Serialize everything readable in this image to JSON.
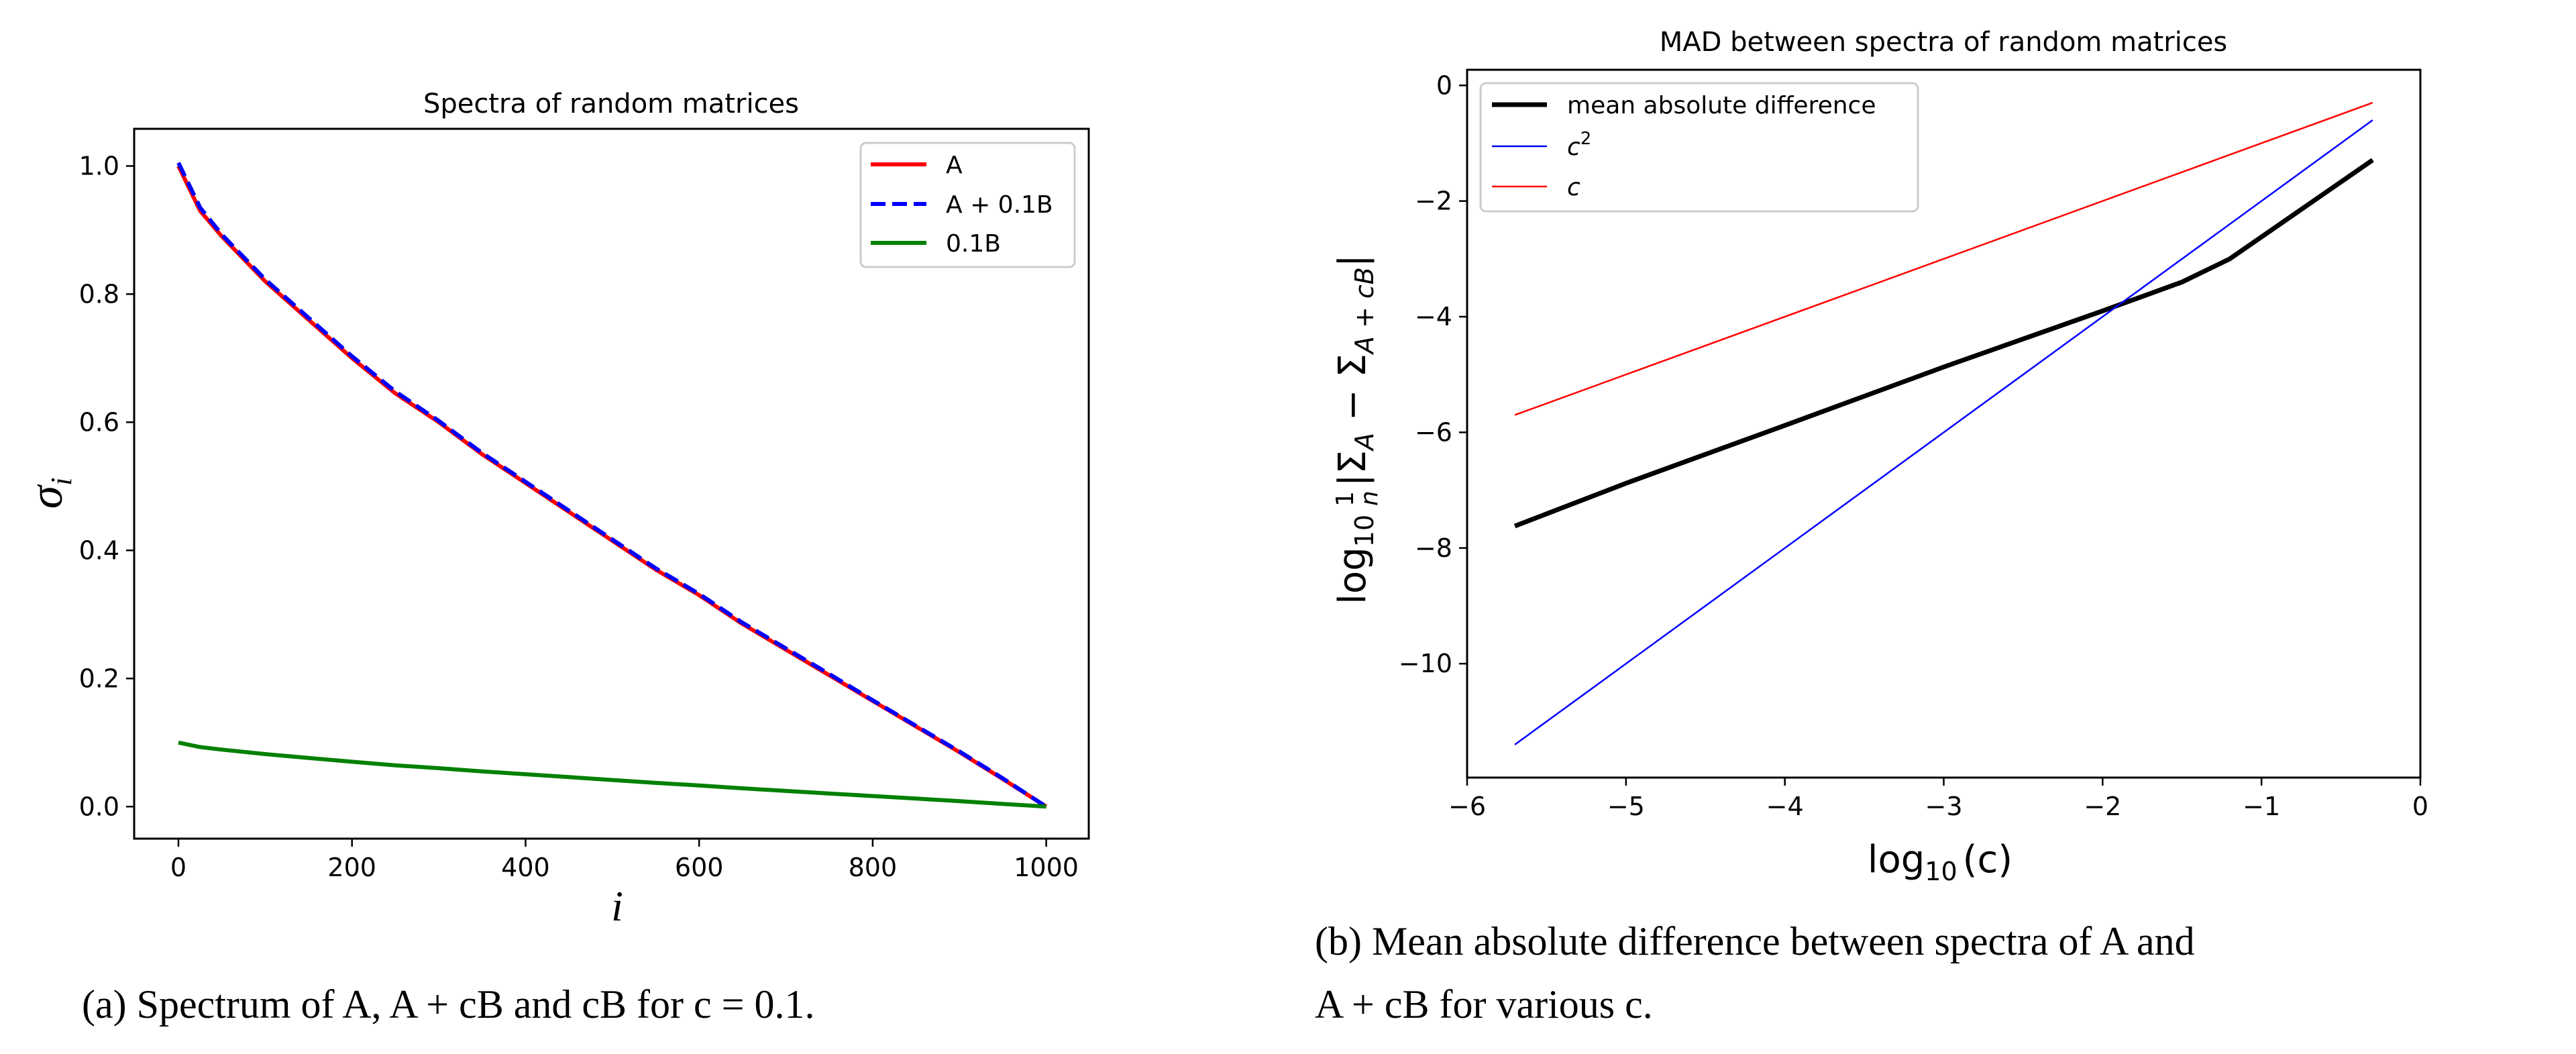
{
  "chart_data": [
    {
      "type": "line",
      "title": "Spectra of random matrices",
      "xlabel": "i",
      "ylabel": "σ",
      "ylabel_sub": "i",
      "xlim": [
        -51,
        1049
      ],
      "ylim": [
        -0.05,
        1.058
      ],
      "xticks": [
        0,
        200,
        400,
        600,
        800,
        1000
      ],
      "xtick_labels": [
        "0",
        "200",
        "400",
        "600",
        "800",
        "1000"
      ],
      "yticks": [
        0.0,
        0.2,
        0.4,
        0.6,
        0.8,
        1.0
      ],
      "ytick_labels": [
        "0.0",
        "0.2",
        "0.4",
        "0.6",
        "0.8",
        "1.0"
      ],
      "grid": false,
      "legend": "top-right",
      "x": [
        0,
        25,
        50,
        100,
        150,
        200,
        250,
        300,
        350,
        400,
        450,
        500,
        550,
        600,
        650,
        700,
        750,
        800,
        850,
        900,
        950,
        1000
      ],
      "series": [
        {
          "name": "A",
          "color": "#ff0000",
          "style": "solid",
          "values": [
            1.0,
            0.93,
            0.89,
            0.82,
            0.76,
            0.7,
            0.645,
            0.6,
            0.55,
            0.505,
            0.46,
            0.415,
            0.37,
            0.33,
            0.285,
            0.245,
            0.205,
            0.165,
            0.125,
            0.085,
            0.043,
            0.0
          ]
        },
        {
          "name": "A + 0.1B",
          "color": "#0000ff",
          "style": "dashed",
          "values": [
            1.005,
            0.935,
            0.893,
            0.823,
            0.763,
            0.703,
            0.648,
            0.602,
            0.552,
            0.507,
            0.462,
            0.417,
            0.372,
            0.332,
            0.287,
            0.247,
            0.207,
            0.166,
            0.126,
            0.086,
            0.044,
            0.0
          ]
        },
        {
          "name": "0.1B",
          "color": "#008000",
          "style": "solid",
          "values": [
            0.1,
            0.093,
            0.089,
            0.082,
            0.076,
            0.07,
            0.0645,
            0.06,
            0.055,
            0.0505,
            0.046,
            0.0415,
            0.037,
            0.033,
            0.0285,
            0.0245,
            0.0205,
            0.0165,
            0.0125,
            0.0085,
            0.0043,
            0.0
          ]
        }
      ]
    },
    {
      "type": "line",
      "title": "MAD between spectra of random matrices",
      "xlabel": "log",
      "xlabel_sub": "10",
      "xlabel_end": "(c)",
      "ylabel_parts": {
        "log": "log",
        "sub10": "10",
        "frac_num": "1",
        "frac_den": "n",
        "bar_sigma": "|Σ",
        "subA": "A",
        "minus_sigma": " − Σ",
        "subAcB": "A + cB",
        "bar": "|"
      },
      "xlim": [
        -6,
        0
      ],
      "ylim": [
        -11.97,
        0.27
      ],
      "xticks": [
        -6,
        -5,
        -4,
        -3,
        -2,
        -1,
        0
      ],
      "xtick_labels": [
        "−6",
        "−5",
        "−4",
        "−3",
        "−2",
        "−1",
        "0"
      ],
      "yticks": [
        0,
        -2,
        -4,
        -6,
        -8,
        -10
      ],
      "ytick_labels": [
        "0",
        "−2",
        "−4",
        "−6",
        "−8",
        "−10"
      ],
      "grid": false,
      "legend": "top-left",
      "series": [
        {
          "name": "mean absolute difference",
          "color": "#000000",
          "x": [
            -5.7,
            -5,
            -4,
            -3,
            -2,
            -1.5,
            -1.2,
            -0.3
          ],
          "values": [
            -7.62,
            -6.88,
            -5.88,
            -4.87,
            -3.9,
            -3.4,
            -3.0,
            -1.29
          ]
        },
        {
          "name": "c",
          "name_sup": "2",
          "color": "#0000ff",
          "x": [
            -5.7,
            -0.3
          ],
          "values": [
            -11.4,
            -0.6
          ]
        },
        {
          "name": "c",
          "color": "#ff0000",
          "x": [
            -5.7,
            -0.3
          ],
          "values": [
            -5.7,
            -0.3
          ]
        }
      ]
    }
  ],
  "captions": {
    "a": "(a) Spectrum of A, A + cB and cB for c = 0.1.",
    "b_line1": "(b) Mean absolute difference between spectra of A and",
    "b_line2": "A + cB for various c."
  }
}
